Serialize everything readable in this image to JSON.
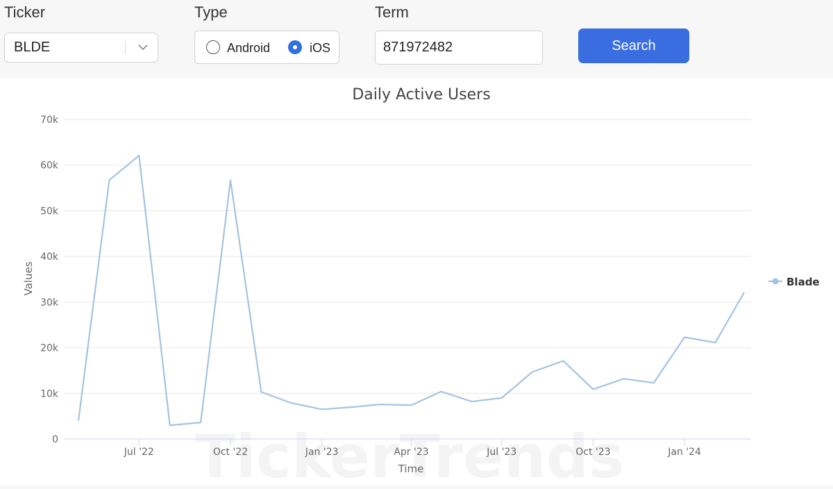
{
  "filters": {
    "ticker_label": "Ticker",
    "ticker_value": "BLDE",
    "type_label": "Type",
    "type_options": [
      "Android",
      "iOS"
    ],
    "type_selected": "iOS",
    "term_label": "Term",
    "term_value": "871972482",
    "search_label": "Search"
  },
  "watermark": "TickerTrends",
  "colors": {
    "accent": "#3a6de0",
    "series": "#a4c3e3",
    "grid": "#e6e6e6"
  },
  "icons": {
    "select_caret": "chevron-down-icon"
  },
  "chart_data": {
    "type": "line",
    "title": "Daily Active Users",
    "xlabel": "Time",
    "ylabel": "Values",
    "ylim": [
      0,
      70000
    ],
    "yticks": [
      "0",
      "10k",
      "20k",
      "30k",
      "40k",
      "50k",
      "60k",
      "70k"
    ],
    "xticks": [
      "Jul '22",
      "Oct '22",
      "Jan '23",
      "Apr '23",
      "Jul '23",
      "Oct '23",
      "Jan '24"
    ],
    "xrange": [
      "2022-05-01",
      "2024-03-31"
    ],
    "grid": true,
    "legend_position": "right",
    "series": [
      {
        "name": "Blade",
        "points": [
          [
            "2022-05-01",
            4000
          ],
          [
            "2022-06-01",
            56700
          ],
          [
            "2022-07-01",
            62100
          ],
          [
            "2022-08-01",
            3000
          ],
          [
            "2022-09-01",
            3600
          ],
          [
            "2022-10-01",
            56700
          ],
          [
            "2022-11-01",
            10300
          ],
          [
            "2022-12-01",
            7900
          ],
          [
            "2023-01-01",
            6500
          ],
          [
            "2023-02-01",
            7000
          ],
          [
            "2023-03-01",
            7600
          ],
          [
            "2023-04-01",
            7400
          ],
          [
            "2023-05-01",
            10400
          ],
          [
            "2023-06-01",
            8200
          ],
          [
            "2023-07-01",
            9000
          ],
          [
            "2023-08-01",
            14700
          ],
          [
            "2023-09-01",
            17100
          ],
          [
            "2023-10-01",
            10900
          ],
          [
            "2023-11-01",
            13200
          ],
          [
            "2023-12-01",
            12300
          ],
          [
            "2024-01-01",
            22300
          ],
          [
            "2024-02-01",
            21100
          ],
          [
            "2024-03-01",
            32100
          ]
        ]
      }
    ]
  }
}
